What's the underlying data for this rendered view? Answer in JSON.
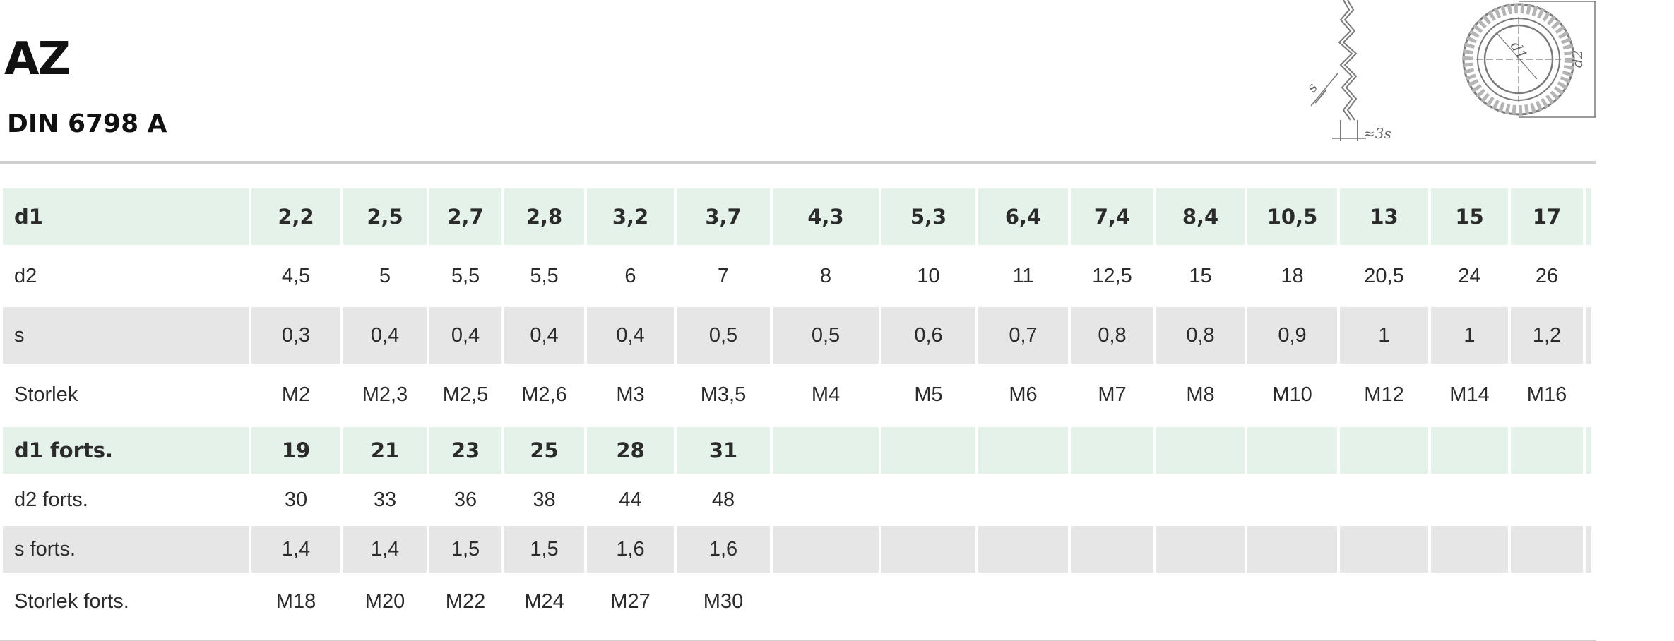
{
  "header": {
    "title": "AZ",
    "subtitle": "DIN 6798 A"
  },
  "drawing": {
    "side_view_labels": [
      "s",
      "≈3s"
    ],
    "front_view_labels": [
      "d1",
      "d2"
    ]
  },
  "table": {
    "rows": [
      {
        "label": "d1",
        "style": "green",
        "values": [
          "2,2",
          "2,5",
          "2,7",
          "2,8",
          "3,2",
          "3,7",
          "4,3",
          "5,3",
          "6,4",
          "7,4",
          "8,4",
          "10,5",
          "13",
          "15",
          "17"
        ]
      },
      {
        "label": "d2",
        "style": "white",
        "values": [
          "4,5",
          "5",
          "5,5",
          "5,5",
          "6",
          "7",
          "8",
          "10",
          "11",
          "12,5",
          "15",
          "18",
          "20,5",
          "24",
          "26"
        ]
      },
      {
        "label": "s",
        "style": "grey",
        "values": [
          "0,3",
          "0,4",
          "0,4",
          "0,4",
          "0,4",
          "0,5",
          "0,5",
          "0,6",
          "0,7",
          "0,8",
          "0,8",
          "0,9",
          "1",
          "1",
          "1,2"
        ]
      },
      {
        "label": "Storlek",
        "style": "white",
        "values": [
          "M2",
          "M2,3",
          "M2,5",
          "M2,6",
          "M3",
          "M3,5",
          "M4",
          "M5",
          "M6",
          "M7",
          "M8",
          "M10",
          "M12",
          "M14",
          "M16"
        ]
      },
      {
        "label": "d1 forts.",
        "style": "green",
        "values": [
          "19",
          "21",
          "23",
          "25",
          "28",
          "31",
          "",
          "",
          "",
          "",
          "",
          "",
          "",
          "",
          ""
        ]
      },
      {
        "label": "d2 forts.",
        "style": "white",
        "values": [
          "30",
          "33",
          "36",
          "38",
          "44",
          "48",
          "",
          "",
          "",
          "",
          "",
          "",
          "",
          "",
          ""
        ]
      },
      {
        "label": "s forts.",
        "style": "grey",
        "values": [
          "1,4",
          "1,4",
          "1,5",
          "1,5",
          "1,6",
          "1,6",
          "",
          "",
          "",
          "",
          "",
          "",
          "",
          "",
          ""
        ]
      },
      {
        "label": "Storlek forts.",
        "style": "white",
        "values": [
          "M18",
          "M20",
          "M22",
          "M24",
          "M27",
          "M30",
          "",
          "",
          "",
          "",
          "",
          "",
          "",
          "",
          ""
        ]
      }
    ]
  }
}
